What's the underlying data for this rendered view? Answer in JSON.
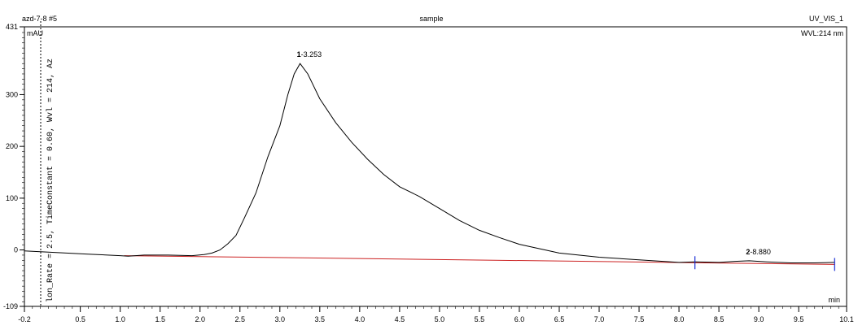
{
  "header": {
    "left": "azd-7-8 #5",
    "center": "sample",
    "right": "UV_VIS_1",
    "wavelength": "WVL:214 nm"
  },
  "yunit": "mAU",
  "xunit": "min",
  "vertical_note": "lon_Rate = 2.5, TimeConstant = 0.60, Wvl = 214, Az",
  "colors": {
    "trace": "#000000",
    "baseline": "#cc2222",
    "marker": "#1a2fd6"
  },
  "chart_data": {
    "type": "line",
    "title": "sample",
    "xlabel": "min",
    "ylabel": "mAU",
    "xlim": [
      -0.2,
      10.1
    ],
    "ylim": [
      -109,
      431
    ],
    "grid": false,
    "x_ticks": [
      -0.2,
      0.5,
      1.0,
      1.5,
      2.0,
      2.5,
      3.0,
      3.5,
      4.0,
      4.5,
      5.0,
      5.5,
      6.0,
      6.5,
      7.0,
      7.5,
      8.0,
      8.5,
      9.0,
      9.5,
      10.1
    ],
    "x_tick_labels": [
      "-0.2",
      "0.5",
      "1.0",
      "1.5",
      "2.0",
      "2.5",
      "3.0",
      "3.5",
      "4.0",
      "4.5",
      "5.0",
      "5.5",
      "6.0",
      "6.5",
      "7.0",
      "7.5",
      "8.0",
      "8.5",
      "9.0",
      "9.5",
      "10.1"
    ],
    "y_ticks": [
      -109,
      0,
      100,
      200,
      300,
      431
    ],
    "y_tick_labels": [
      "-109",
      "0",
      "100",
      "200",
      "300",
      "431"
    ],
    "series": [
      {
        "x": [
          -0.2,
          0.2,
          0.6,
          1.0,
          1.1,
          1.3,
          1.6,
          1.9,
          2.05,
          2.15,
          2.25,
          2.35,
          2.45,
          2.55,
          2.7,
          2.85,
          3.0,
          3.1,
          3.18,
          3.253,
          3.35,
          3.5,
          3.7,
          3.9,
          4.1,
          4.3,
          4.5,
          4.75,
          5.0,
          5.25,
          5.5,
          5.75,
          6.0,
          6.5,
          7.0,
          7.5,
          7.8,
          8.0,
          8.2,
          8.5,
          8.7,
          8.88,
          9.1,
          9.4,
          9.7,
          9.95
        ],
        "y": [
          -2,
          -5,
          -8,
          -11,
          -12,
          -10,
          -10,
          -11,
          -9,
          -6,
          0,
          12,
          28,
          60,
          110,
          180,
          240,
          300,
          340,
          360,
          340,
          292,
          246,
          208,
          175,
          146,
          122,
          103,
          80,
          57,
          38,
          24,
          11,
          -6,
          -14,
          -19,
          -22,
          -24,
          -23,
          -24,
          -22,
          -21,
          -23,
          -25,
          -25,
          -24
        ]
      }
    ],
    "baseline": {
      "x": [
        1.05,
        9.95
      ],
      "y": [
        -11,
        -28
      ]
    },
    "peaks": [
      {
        "label": "1",
        "rt_label": "3.253",
        "x": 3.253,
        "y": 360
      },
      {
        "label": "2",
        "rt_label": "8.880",
        "x": 8.88,
        "y": -21
      }
    ],
    "integration_markers": [
      8.2,
      9.95
    ]
  }
}
